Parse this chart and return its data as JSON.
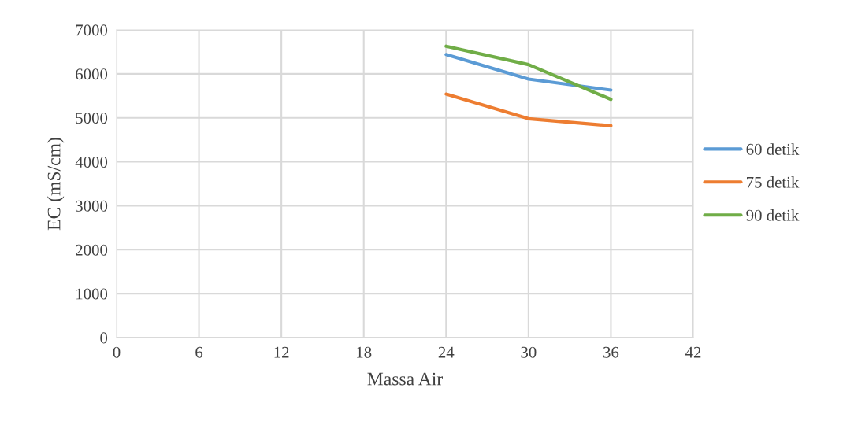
{
  "chart_data": {
    "type": "line",
    "xlabel": "Massa Air",
    "ylabel": "EC (mS/cm)",
    "x": [
      24,
      30,
      36
    ],
    "series": [
      {
        "name": "60 detik",
        "color": "#5b9bd5",
        "values": [
          6440,
          5880,
          5630
        ]
      },
      {
        "name": "75 detik",
        "color": "#ed7d31",
        "values": [
          5540,
          4980,
          4820
        ]
      },
      {
        "name": "90 detik",
        "color": "#70ad47",
        "values": [
          6630,
          6210,
          5420
        ]
      }
    ],
    "xlim": [
      0,
      42
    ],
    "xticks": [
      0,
      6,
      12,
      18,
      24,
      30,
      36,
      42
    ],
    "ylim": [
      0,
      7000
    ],
    "yticks": [
      0,
      1000,
      2000,
      3000,
      4000,
      5000,
      6000,
      7000
    ],
    "grid": true,
    "legend": "right",
    "marker": "none",
    "line_style": "solid"
  }
}
